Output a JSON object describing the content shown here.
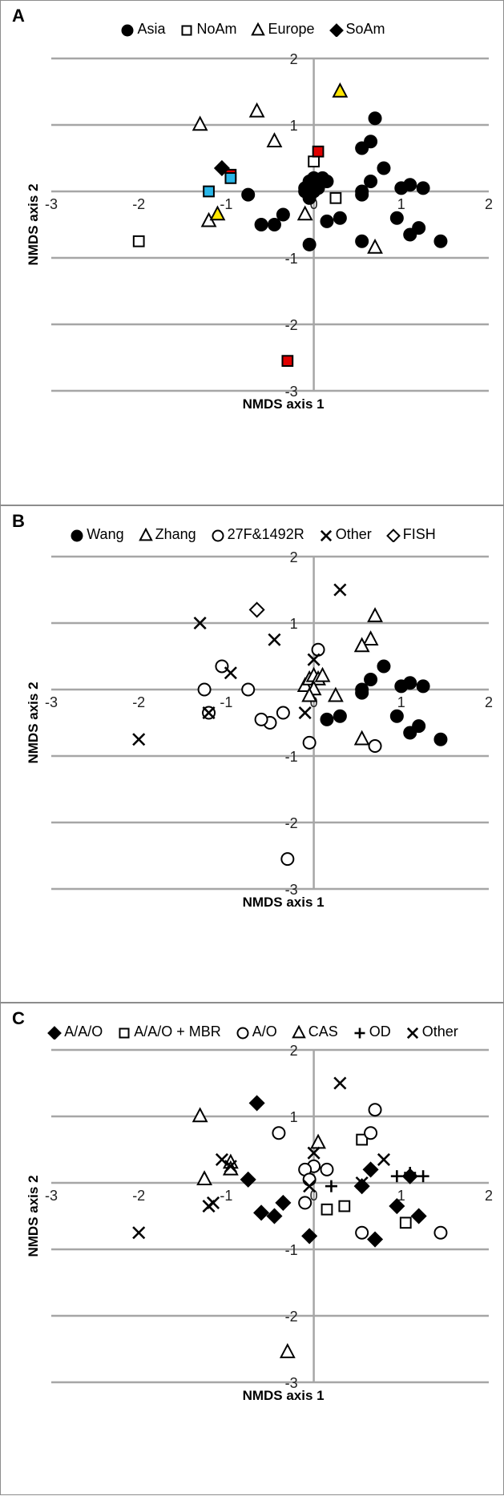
{
  "chart_data": [
    {
      "type": "scatter",
      "panel_label": "A",
      "xlabel": "NMDS axis 1",
      "ylabel": "NMDS axis 2",
      "xlim": [
        -3,
        2
      ],
      "ylim": [
        -3,
        2
      ],
      "xticks": [
        -3,
        -2,
        -1,
        0,
        1,
        2
      ],
      "yticks": [
        -3,
        -2,
        -1,
        0,
        1,
        2
      ],
      "gridlines": "horizontal",
      "legend_position": "top-center",
      "legend": [
        {
          "label": "Asia",
          "marker": "circle"
        },
        {
          "label": "NoAm",
          "marker": "square"
        },
        {
          "label": "Europe",
          "marker": "triangle"
        },
        {
          "label": "SoAm",
          "marker": "diamond"
        }
      ],
      "series": [
        {
          "name": "Asia",
          "marker": "circle",
          "fill": "#000000",
          "points": [
            [
              -0.1,
              0.05
            ],
            [
              -0.05,
              0.15
            ],
            [
              0.0,
              0.2
            ],
            [
              0.05,
              0.15
            ],
            [
              0.1,
              0.2
            ],
            [
              0.15,
              0.15
            ],
            [
              0.0,
              0.0
            ],
            [
              -0.05,
              -0.1
            ],
            [
              0.05,
              0.05
            ],
            [
              -0.1,
              0.0
            ],
            [
              0.55,
              0.65
            ],
            [
              0.65,
              0.75
            ],
            [
              0.7,
              1.1
            ],
            [
              0.65,
              0.15
            ],
            [
              0.8,
              0.35
            ],
            [
              0.55,
              0.0
            ],
            [
              0.55,
              -0.05
            ],
            [
              1.0,
              0.05
            ],
            [
              1.1,
              0.1
            ],
            [
              1.25,
              0.05
            ],
            [
              0.95,
              -0.4
            ],
            [
              1.1,
              -0.65
            ],
            [
              1.2,
              -0.55
            ],
            [
              1.45,
              -0.75
            ],
            [
              0.55,
              -0.75
            ],
            [
              0.15,
              -0.45
            ],
            [
              0.3,
              -0.4
            ],
            [
              -0.05,
              -0.8
            ],
            [
              -0.35,
              -0.35
            ],
            [
              -0.45,
              -0.5
            ],
            [
              -0.6,
              -0.5
            ],
            [
              -0.75,
              -0.05
            ]
          ]
        },
        {
          "name": "NoAm",
          "marker": "square",
          "fill": "#ffffff",
          "points": [
            [
              -2.0,
              -0.75
            ],
            [
              0.0,
              0.45
            ],
            [
              0.25,
              -0.1
            ]
          ]
        },
        {
          "name": "NoAm",
          "marker": "square",
          "fill": "#e00000",
          "points": [
            [
              0.05,
              0.6
            ],
            [
              -0.95,
              0.25
            ],
            [
              -0.3,
              -2.55
            ]
          ]
        },
        {
          "name": "NoAm",
          "marker": "square",
          "fill": "#29b6e8",
          "points": [
            [
              -1.2,
              0.0
            ],
            [
              -0.95,
              0.2
            ]
          ]
        },
        {
          "name": "Europe",
          "marker": "triangle",
          "fill": "#ffffff",
          "points": [
            [
              -1.3,
              1.0
            ],
            [
              -0.65,
              1.2
            ],
            [
              -0.45,
              0.75
            ],
            [
              -1.2,
              -0.45
            ],
            [
              -0.1,
              -0.35
            ],
            [
              0.7,
              -0.85
            ]
          ]
        },
        {
          "name": "Europe",
          "marker": "triangle",
          "fill": "#ffe600",
          "points": [
            [
              0.3,
              1.5
            ],
            [
              -1.1,
              -0.35
            ]
          ]
        },
        {
          "name": "SoAm",
          "marker": "diamond",
          "fill": "#000000",
          "points": [
            [
              -1.05,
              0.35
            ]
          ]
        }
      ]
    },
    {
      "type": "scatter",
      "panel_label": "B",
      "xlabel": "NMDS axis 1",
      "ylabel": "NMDS axis 2",
      "xlim": [
        -3,
        2
      ],
      "ylim": [
        -3,
        2
      ],
      "xticks": [
        -3,
        -2,
        -1,
        0,
        1,
        2
      ],
      "yticks": [
        -3,
        -2,
        -1,
        0,
        1,
        2
      ],
      "gridlines": "horizontal",
      "legend_position": "top-center",
      "legend": [
        {
          "label": "Wang",
          "marker": "circle"
        },
        {
          "label": "Zhang",
          "marker": "triangle"
        },
        {
          "label": "27F&1492R",
          "marker": "open-circle"
        },
        {
          "label": "Other",
          "marker": "x"
        },
        {
          "label": "FISH",
          "marker": "open-diamond"
        }
      ],
      "series": [
        {
          "name": "Wang",
          "marker": "circle",
          "fill": "#000000",
          "points": [
            [
              0.65,
              0.15
            ],
            [
              0.8,
              0.35
            ],
            [
              0.55,
              0.0
            ],
            [
              0.55,
              -0.05
            ],
            [
              1.0,
              0.05
            ],
            [
              1.1,
              0.1
            ],
            [
              1.25,
              0.05
            ],
            [
              0.95,
              -0.4
            ],
            [
              1.1,
              -0.65
            ],
            [
              1.2,
              -0.55
            ],
            [
              1.45,
              -0.75
            ],
            [
              0.15,
              -0.45
            ],
            [
              0.3,
              -0.4
            ]
          ]
        },
        {
          "name": "Zhang",
          "marker": "triangle",
          "fill": "#ffffff",
          "points": [
            [
              0.7,
              1.1
            ],
            [
              0.65,
              0.75
            ],
            [
              0.55,
              0.65
            ],
            [
              -0.1,
              0.05
            ],
            [
              -0.05,
              0.15
            ],
            [
              0.0,
              0.2
            ],
            [
              0.05,
              0.15
            ],
            [
              0.1,
              0.2
            ],
            [
              0.0,
              0.0
            ],
            [
              -0.05,
              -0.1
            ],
            [
              0.25,
              -0.1
            ],
            [
              0.55,
              -0.75
            ]
          ]
        },
        {
          "name": "27F&1492R",
          "marker": "open-circle",
          "fill": "#ffffff",
          "points": [
            [
              0.05,
              0.6
            ],
            [
              -1.05,
              0.35
            ],
            [
              -1.25,
              0.0
            ],
            [
              -0.75,
              0.0
            ],
            [
              -1.2,
              -0.35
            ],
            [
              -0.35,
              -0.35
            ],
            [
              -0.5,
              -0.5
            ],
            [
              -0.6,
              -0.45
            ],
            [
              -0.05,
              -0.8
            ],
            [
              0.7,
              -0.85
            ],
            [
              -0.3,
              -2.55
            ]
          ]
        },
        {
          "name": "Other",
          "marker": "x",
          "fill": "#000000",
          "points": [
            [
              0.3,
              1.5
            ],
            [
              -1.3,
              1.0
            ],
            [
              -0.45,
              0.75
            ],
            [
              0.0,
              0.45
            ],
            [
              -0.95,
              0.25
            ],
            [
              -1.2,
              -0.35
            ],
            [
              -2.0,
              -0.75
            ],
            [
              -0.1,
              -0.35
            ]
          ]
        },
        {
          "name": "FISH",
          "marker": "open-diamond",
          "fill": "#ffffff",
          "points": [
            [
              -0.65,
              1.2
            ]
          ]
        }
      ]
    },
    {
      "type": "scatter",
      "panel_label": "C",
      "xlabel": "NMDS axis 1",
      "ylabel": "NMDS axis 2",
      "xlim": [
        -3,
        2
      ],
      "ylim": [
        -3,
        2
      ],
      "xticks": [
        -3,
        -2,
        -1,
        0,
        1,
        2
      ],
      "yticks": [
        -3,
        -2,
        -1,
        0,
        1,
        2
      ],
      "gridlines": "horizontal",
      "legend_position": "top-center",
      "legend": [
        {
          "label": "A/A/O",
          "marker": "diamond"
        },
        {
          "label": "A/A/O + MBR",
          "marker": "square"
        },
        {
          "label": "A/O",
          "marker": "open-circle"
        },
        {
          "label": "CAS",
          "marker": "triangle"
        },
        {
          "label": "OD",
          "marker": "plus"
        },
        {
          "label": "Other",
          "marker": "x"
        }
      ],
      "series": [
        {
          "name": "A/A/O",
          "marker": "diamond",
          "fill": "#000000",
          "points": [
            [
              -0.65,
              1.2
            ],
            [
              -0.75,
              0.05
            ],
            [
              -0.35,
              -0.3
            ],
            [
              -0.6,
              -0.45
            ],
            [
              -0.45,
              -0.5
            ],
            [
              -0.05,
              -0.8
            ],
            [
              0.65,
              0.2
            ],
            [
              0.55,
              -0.05
            ],
            [
              0.95,
              -0.35
            ],
            [
              0.7,
              -0.85
            ],
            [
              1.2,
              -0.5
            ],
            [
              1.1,
              0.1
            ]
          ]
        },
        {
          "name": "A/A/O + MBR",
          "marker": "square",
          "fill": "#ffffff",
          "points": [
            [
              0.55,
              0.65
            ],
            [
              0.15,
              -0.4
            ],
            [
              0.35,
              -0.35
            ],
            [
              1.05,
              -0.6
            ]
          ]
        },
        {
          "name": "A/O",
          "marker": "open-circle",
          "fill": "#ffffff",
          "points": [
            [
              0.7,
              1.1
            ],
            [
              -0.4,
              0.75
            ],
            [
              0.65,
              0.75
            ],
            [
              0.0,
              0.25
            ],
            [
              -0.1,
              0.2
            ],
            [
              0.15,
              0.2
            ],
            [
              -0.05,
              0.05
            ],
            [
              -0.1,
              -0.3
            ],
            [
              0.55,
              -0.75
            ],
            [
              1.45,
              -0.75
            ]
          ]
        },
        {
          "name": "CAS",
          "marker": "triangle",
          "fill": "#ffffff",
          "points": [
            [
              -1.3,
              1.0
            ],
            [
              0.05,
              0.6
            ],
            [
              -0.95,
              0.3
            ],
            [
              -0.95,
              0.2
            ],
            [
              -1.25,
              0.05
            ],
            [
              -0.3,
              -2.55
            ]
          ]
        },
        {
          "name": "OD",
          "marker": "plus",
          "fill": "#000000",
          "points": [
            [
              0.95,
              0.1
            ],
            [
              1.1,
              0.15
            ],
            [
              1.25,
              0.1
            ],
            [
              0.2,
              -0.05
            ]
          ]
        },
        {
          "name": "Other",
          "marker": "x",
          "fill": "#000000",
          "points": [
            [
              0.3,
              1.5
            ],
            [
              0.0,
              0.45
            ],
            [
              -1.05,
              0.35
            ],
            [
              -0.95,
              0.25
            ],
            [
              0.8,
              0.35
            ],
            [
              -1.15,
              -0.3
            ],
            [
              -1.2,
              -0.35
            ],
            [
              -2.0,
              -0.75
            ],
            [
              0.55,
              0.0
            ],
            [
              -0.05,
              -0.05
            ]
          ]
        }
      ]
    }
  ],
  "style": {
    "axis_color": "#a6a6a6",
    "marker_stroke": "#000000",
    "panel_border": "#8c8c8c"
  }
}
